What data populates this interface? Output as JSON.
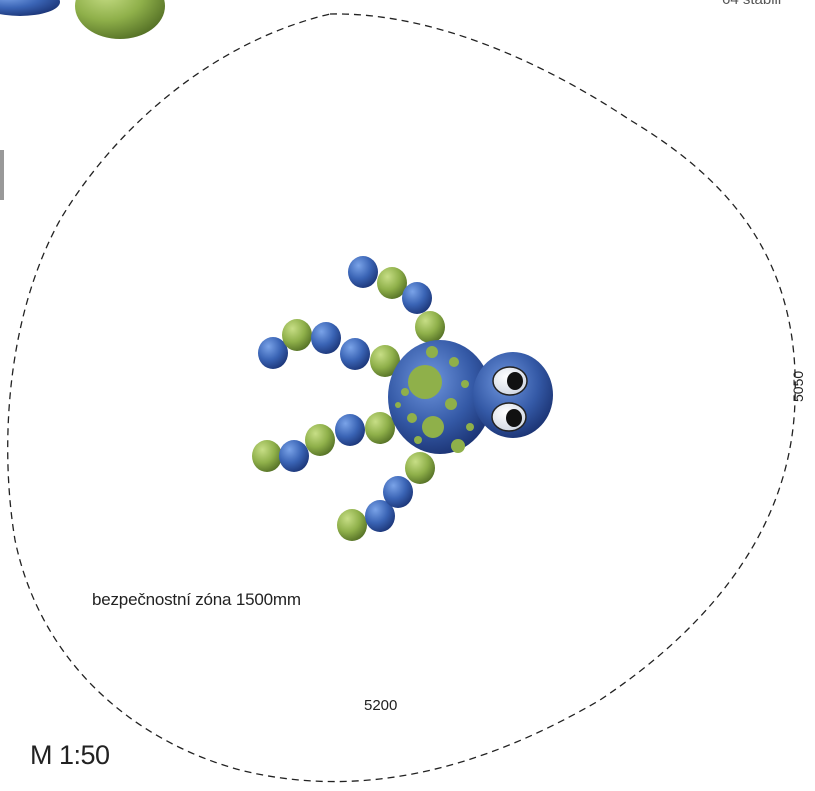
{
  "labels": {
    "safety_zone": "bezpečnostní zóna 1500mm",
    "width_dim": "5200",
    "height_dim": "5050",
    "scale": "M 1:50",
    "corner_text": "64 stabili"
  },
  "colors": {
    "blue": "#3a64b5",
    "blue_dark": "#1f3f8a",
    "green": "#8fb04a",
    "green_dark": "#5e7f2a",
    "dash": "#222222"
  },
  "objects": {
    "figure": "octopus play element (top view)",
    "safety_zone_outline": "dashed"
  }
}
